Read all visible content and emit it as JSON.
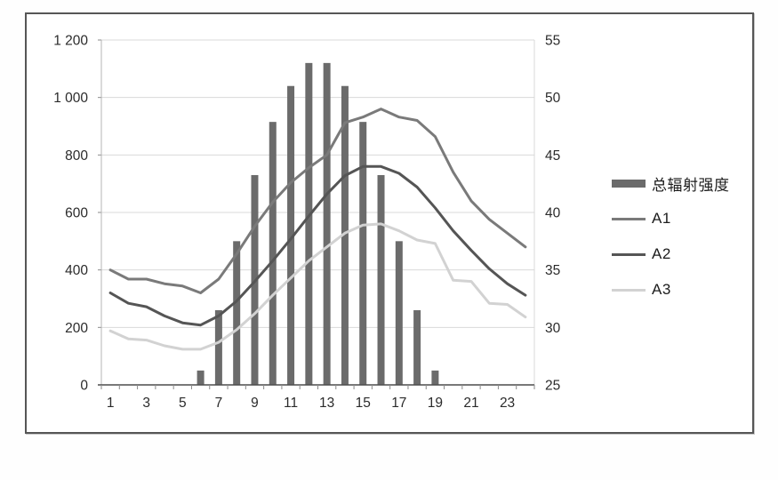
{
  "chart_data": {
    "type": "combo",
    "title": "",
    "categories": [
      1,
      2,
      3,
      4,
      5,
      6,
      7,
      8,
      9,
      10,
      11,
      12,
      13,
      14,
      15,
      16,
      17,
      18,
      19,
      20,
      21,
      22,
      23,
      24
    ],
    "x_tick_labels": [
      "1",
      "3",
      "5",
      "7",
      "9",
      "11",
      "13",
      "15",
      "17",
      "19",
      "21",
      "23"
    ],
    "bar_series": {
      "name": "总辐射强度",
      "axis": "left",
      "color": "#6b6b6b",
      "values": [
        0,
        0,
        0,
        0,
        0,
        50,
        260,
        500,
        730,
        915,
        1040,
        1120,
        1120,
        1040,
        915,
        730,
        500,
        260,
        50,
        0,
        0,
        0,
        0,
        0
      ]
    },
    "line_series": [
      {
        "name": "A1",
        "axis": "right",
        "color": "#7a7a7a",
        "width": 3,
        "values": [
          35.0,
          34.2,
          34.2,
          33.8,
          33.6,
          33.0,
          34.2,
          36.4,
          38.8,
          40.9,
          42.6,
          43.9,
          45.0,
          47.8,
          48.3,
          49.0,
          48.3,
          48.0,
          46.6,
          43.5,
          41.0,
          39.4,
          38.2,
          37.0
        ]
      },
      {
        "name": "A2",
        "axis": "right",
        "color": "#555555",
        "width": 3,
        "values": [
          33.0,
          32.1,
          31.8,
          31.0,
          30.4,
          30.2,
          31.0,
          32.3,
          34.0,
          35.8,
          37.7,
          39.7,
          41.6,
          43.2,
          44.0,
          44.0,
          43.4,
          42.2,
          40.4,
          38.4,
          36.7,
          35.1,
          33.8,
          32.8
        ]
      },
      {
        "name": "A3",
        "axis": "right",
        "color": "#d2d2d2",
        "width": 3,
        "values": [
          29.7,
          29.0,
          28.9,
          28.4,
          28.1,
          28.1,
          28.7,
          29.8,
          31.2,
          32.8,
          34.3,
          35.8,
          37.0,
          38.2,
          38.9,
          39.0,
          38.4,
          37.6,
          37.3,
          34.1,
          34.0,
          32.1,
          32.0,
          30.9
        ]
      }
    ],
    "left_axis": {
      "min": 0,
      "max": 1200,
      "tick_step": 200,
      "tick_labels": [
        "1 200",
        "1 000",
        "800",
        "600",
        "400",
        "200",
        "0"
      ]
    },
    "right_axis": {
      "min": 25,
      "max": 55,
      "tick_step": 5,
      "tick_labels": [
        "55",
        "50",
        "45",
        "40",
        "35",
        "30",
        "25"
      ]
    },
    "grid": "horizontal-only",
    "legend_position": "right"
  },
  "legend": {
    "items": [
      {
        "label": "总辐射强度",
        "swatch": "bar",
        "color": "#6b6b6b"
      },
      {
        "label": "A1",
        "swatch": "line",
        "color": "#7a7a7a"
      },
      {
        "label": "A2",
        "swatch": "line",
        "color": "#555555"
      },
      {
        "label": "A3",
        "swatch": "line",
        "color": "#d2d2d2"
      }
    ]
  },
  "style_colors": {
    "grid": "#d9d9d9",
    "x_axis_line": "#4d4d4d",
    "y_axis_line": "#b5b5b5",
    "tick": "#8a8a8a",
    "axis_text": "#2b2b2b",
    "frame": "#565656"
  }
}
